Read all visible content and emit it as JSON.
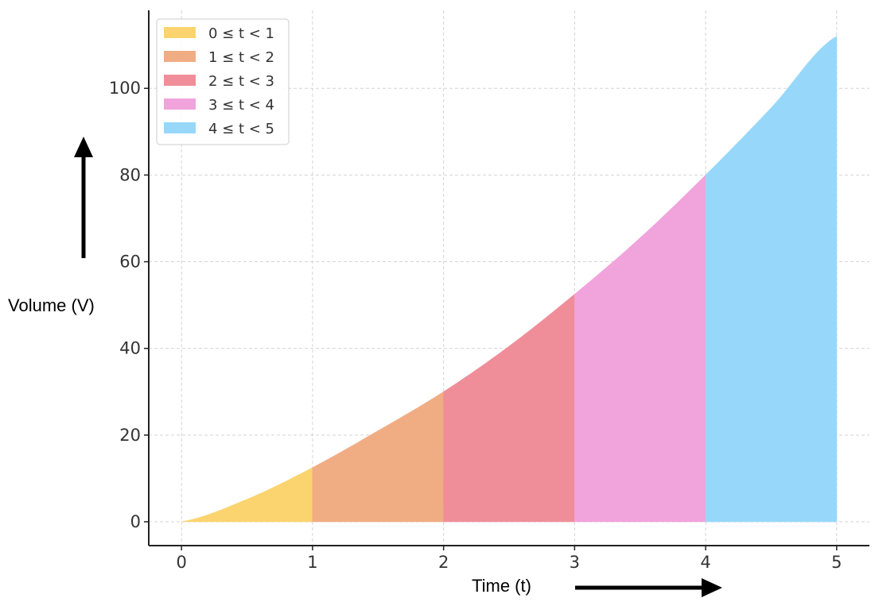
{
  "chart_data": {
    "type": "area",
    "xlabel": "Time (t)",
    "ylabel": "Volume (V)",
    "xlim": [
      -0.25,
      5.25
    ],
    "ylim": [
      -5.5,
      118
    ],
    "x_ticks": [
      0,
      1,
      2,
      3,
      4,
      5
    ],
    "y_ticks": [
      0,
      20,
      40,
      60,
      80,
      100
    ],
    "grid": true,
    "legend_position": "top-left",
    "curve": {
      "x": [
        0,
        0.5,
        1,
        1.5,
        2,
        2.5,
        3,
        3.5,
        4,
        4.5,
        5
      ],
      "y": [
        0,
        5.2,
        12.5,
        21,
        30,
        40.5,
        52.5,
        65.5,
        80,
        95.5,
        112
      ]
    },
    "series": [
      {
        "name": "0 ≤ t < 1",
        "x_start": 0,
        "x_end": 1,
        "color": "#fbd46f"
      },
      {
        "name": "1 ≤ t < 2",
        "x_start": 1,
        "x_end": 2,
        "color": "#f0ad84"
      },
      {
        "name": "2 ≤ t < 3",
        "x_start": 2,
        "x_end": 3,
        "color": "#ef8e99"
      },
      {
        "name": "3 ≤ t < 4",
        "x_start": 3,
        "x_end": 4,
        "color": "#f1a3dc"
      },
      {
        "name": "4 ≤ t < 5",
        "x_start": 4,
        "x_end": 5,
        "color": "#97d8fa"
      }
    ]
  }
}
